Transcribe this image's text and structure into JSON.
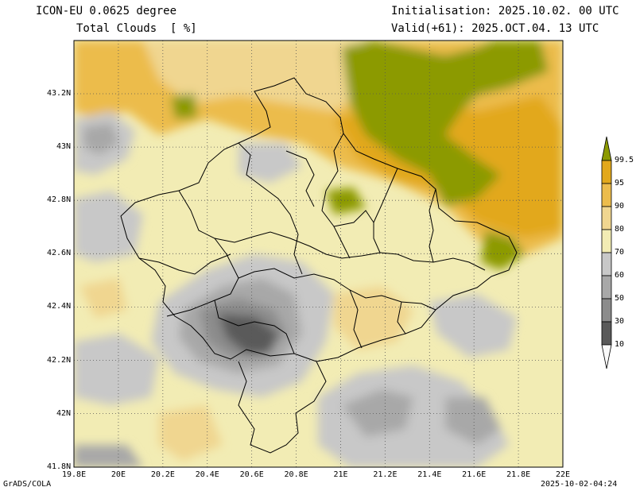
{
  "header": {
    "model": "ICON-EU 0.0625 degree",
    "variable": "Total Clouds  [ %]",
    "init": "Initialisation: 2025.10.02. 00 UTC",
    "valid": "Valid(+61): 2025.OCT.04. 13 UTC"
  },
  "footer": {
    "credit": "GrADS/COLA",
    "timestamp": "2025-10-02-04:24"
  },
  "axes": {
    "lon_ticks": [
      "19.8E",
      "20E",
      "20.2E",
      "20.4E",
      "20.6E",
      "20.8E",
      "21E",
      "21.2E",
      "21.4E",
      "21.6E",
      "21.8E",
      "22E"
    ],
    "lat_ticks": [
      "43.2N",
      "43N",
      "42.8N",
      "42.6N",
      "42.4N",
      "42.2N",
      "42N",
      "41.8N"
    ]
  },
  "colorbar": {
    "levels": [
      "99.5",
      "95",
      "90",
      "80",
      "70",
      "60",
      "50",
      "30",
      "10"
    ],
    "colors": [
      "#8c9a00",
      "#e2a81c",
      "#ecbc4c",
      "#f0d690",
      "#f2ecb4",
      "#c8c8c8",
      "#a8a8a8",
      "#8c8c8c",
      "#5a5a5a",
      "#fafafa"
    ]
  },
  "map": {
    "palette": {
      "olive": "#8c9a00",
      "orange": "#e2a81c",
      "lightorange": "#ecbc4c",
      "tan": "#f0d690",
      "cream": "#f2ecb4",
      "gray1": "#c8c8c8",
      "gray2": "#a8a8a8",
      "gray3": "#8c8c8c",
      "gray4": "#5a5a5a"
    }
  }
}
